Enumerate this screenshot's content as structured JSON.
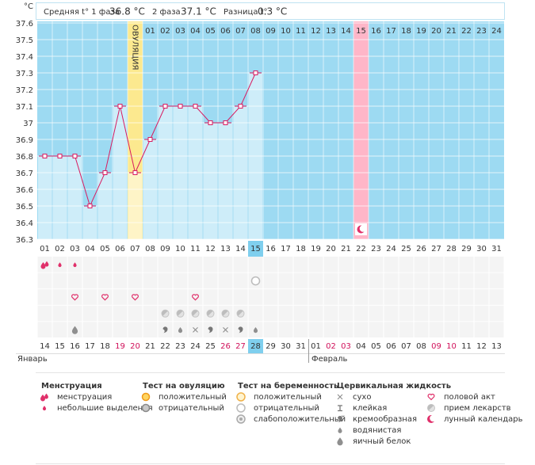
{
  "header": {
    "unit": "°C",
    "phase1_label": "Средняя t° 1 фаза",
    "phase1_value": "36.8 °C",
    "phase2_label": "2 фаза",
    "phase2_value": "37.1 °C",
    "diff_label": "Разница t°",
    "diff_value": "0.3 °C"
  },
  "chart_data": {
    "type": "line",
    "ylim": [
      36.3,
      37.6
    ],
    "yticks": [
      37.6,
      37.5,
      37.4,
      37.3,
      37.2,
      37.1,
      37,
      36.9,
      36.8,
      36.7,
      36.6,
      36.5,
      36.4,
      36.3
    ],
    "grid": true,
    "background": "#9ddaf2",
    "categories": [
      "01",
      "02",
      "03",
      "04",
      "05",
      "06",
      "07",
      "08",
      "09",
      "10",
      "11",
      "12",
      "13",
      "14",
      "15",
      "16",
      "17",
      "18",
      "19",
      "20",
      "21",
      "22",
      "23",
      "24",
      "25",
      "26",
      "27",
      "28",
      "29",
      "30",
      "31"
    ],
    "top_labels": [
      null,
      null,
      null,
      null,
      null,
      null,
      "ОВУЛЯЦИЯ",
      "01",
      "02",
      "03",
      "04",
      "05",
      "06",
      "07",
      "08",
      "09",
      "10",
      "11",
      "12",
      "13",
      "14",
      "15",
      "16",
      "17",
      "18",
      "19",
      "20",
      "21",
      "22",
      "23",
      "24"
    ],
    "series": [
      {
        "color": "#d81b60",
        "values": [
          36.8,
          36.8,
          36.8,
          36.5,
          36.7,
          37.1,
          36.7,
          36.9,
          37.1,
          37.1,
          37.1,
          37.0,
          37.0,
          37.1,
          37.3,
          null,
          null,
          null,
          null,
          null,
          null,
          null,
          null,
          null,
          null,
          null,
          null,
          null,
          null,
          null,
          null
        ]
      }
    ],
    "column_colors": [
      null,
      null,
      null,
      null,
      null,
      null,
      "#fce98f",
      null,
      null,
      null,
      null,
      null,
      null,
      null,
      null,
      null,
      null,
      null,
      null,
      null,
      null,
      "#ffb6c8",
      null,
      null,
      null,
      null,
      null,
      null,
      null,
      null,
      null
    ],
    "category_highlight_colors": [
      null,
      null,
      null,
      null,
      null,
      null,
      null,
      null,
      null,
      null,
      null,
      null,
      null,
      null,
      "#7fcfee",
      null,
      null,
      null,
      null,
      null,
      null,
      null,
      null,
      null,
      null,
      null,
      null,
      null,
      null,
      null,
      null
    ],
    "column_icons": [
      null,
      null,
      null,
      null,
      null,
      null,
      null,
      null,
      null,
      null,
      null,
      null,
      null,
      null,
      null,
      null,
      null,
      null,
      null,
      null,
      null,
      "moon",
      null,
      null,
      null,
      null,
      null,
      null,
      null,
      null,
      null
    ]
  },
  "calendar": {
    "dates": [
      "14",
      "15",
      "16",
      "17",
      "18",
      "19",
      "20",
      "21",
      "22",
      "23",
      "24",
      "25",
      "26",
      "27",
      "28",
      "29",
      "30",
      "31",
      "01",
      "02",
      "03",
      "04",
      "05",
      "06",
      "07",
      "08",
      "09",
      "10",
      "11",
      "12",
      "13"
    ],
    "date_colors": [
      null,
      null,
      null,
      null,
      null,
      "#d0105a",
      "#d0105a",
      null,
      null,
      null,
      null,
      null,
      "#d0105a",
      "#d0105a",
      null,
      null,
      null,
      null,
      null,
      "#d0105a",
      "#d0105a",
      null,
      null,
      null,
      null,
      null,
      "#d0105a",
      "#d0105a",
      null,
      null,
      null
    ],
    "months": [
      "Январь",
      "Февраль"
    ],
    "symbol_rows": [
      [
        "drops",
        "drop",
        "drop",
        null,
        null,
        null,
        null,
        null,
        null,
        null,
        null,
        null,
        null,
        null,
        null,
        null,
        null,
        null,
        null,
        null,
        null,
        null,
        null,
        null,
        null,
        null,
        null,
        null,
        null,
        null,
        null
      ],
      [
        null,
        null,
        null,
        null,
        null,
        null,
        null,
        null,
        null,
        null,
        null,
        null,
        null,
        null,
        "preg-neg",
        null,
        null,
        null,
        null,
        null,
        null,
        null,
        null,
        null,
        null,
        null,
        null,
        null,
        null,
        null,
        null
      ],
      [
        null,
        null,
        "heart",
        null,
        "heart",
        null,
        "heart",
        null,
        null,
        null,
        "heart",
        null,
        null,
        null,
        null,
        null,
        null,
        null,
        null,
        null,
        null,
        null,
        null,
        null,
        null,
        null,
        null,
        null,
        null,
        null,
        null
      ],
      [
        null,
        null,
        null,
        null,
        null,
        null,
        null,
        null,
        "pill",
        "pill",
        "pill",
        "pill",
        "pill",
        "pill",
        null,
        null,
        null,
        null,
        null,
        null,
        null,
        null,
        null,
        null,
        null,
        null,
        null,
        null,
        null,
        null,
        null
      ],
      [
        null,
        null,
        "egg",
        null,
        null,
        null,
        null,
        null,
        "creamy",
        "watery",
        "dry",
        "creamy",
        "dry",
        "creamy",
        "watery",
        null,
        null,
        null,
        null,
        null,
        null,
        null,
        null,
        null,
        null,
        null,
        null,
        null,
        null,
        null,
        null
      ]
    ]
  },
  "legend": {
    "groups": [
      {
        "title": "Менструация",
        "items": [
          {
            "label": "менструация",
            "icon": "drops"
          },
          {
            "label": "небольшие выделения",
            "icon": "drop"
          }
        ]
      },
      {
        "title": "Тест на овуляцию",
        "items": [
          {
            "label": "положительный",
            "icon": "ovu-pos"
          },
          {
            "label": "отрицательный",
            "icon": "ovu-neg"
          }
        ]
      },
      {
        "title": "Тест на беременность",
        "items": [
          {
            "label": "положительный",
            "icon": "preg-pos"
          },
          {
            "label": "отрицательный",
            "icon": "preg-neg"
          },
          {
            "label": "слабоположительный",
            "icon": "preg-weak"
          }
        ]
      },
      {
        "title": "Цервикальная жидкость",
        "items": [
          {
            "label": "сухо",
            "icon": "dry"
          },
          {
            "label": "клейкая",
            "icon": "sticky"
          },
          {
            "label": "кремообразная",
            "icon": "creamy"
          },
          {
            "label": "водянистая",
            "icon": "watery"
          },
          {
            "label": "яичный белок",
            "icon": "egg"
          }
        ]
      },
      {
        "items": [
          {
            "label": "половой акт",
            "icon": "heart"
          },
          {
            "label": "прием лекарств",
            "icon": "pill"
          },
          {
            "label": "лунный календарь",
            "icon": "moon"
          }
        ]
      }
    ]
  }
}
